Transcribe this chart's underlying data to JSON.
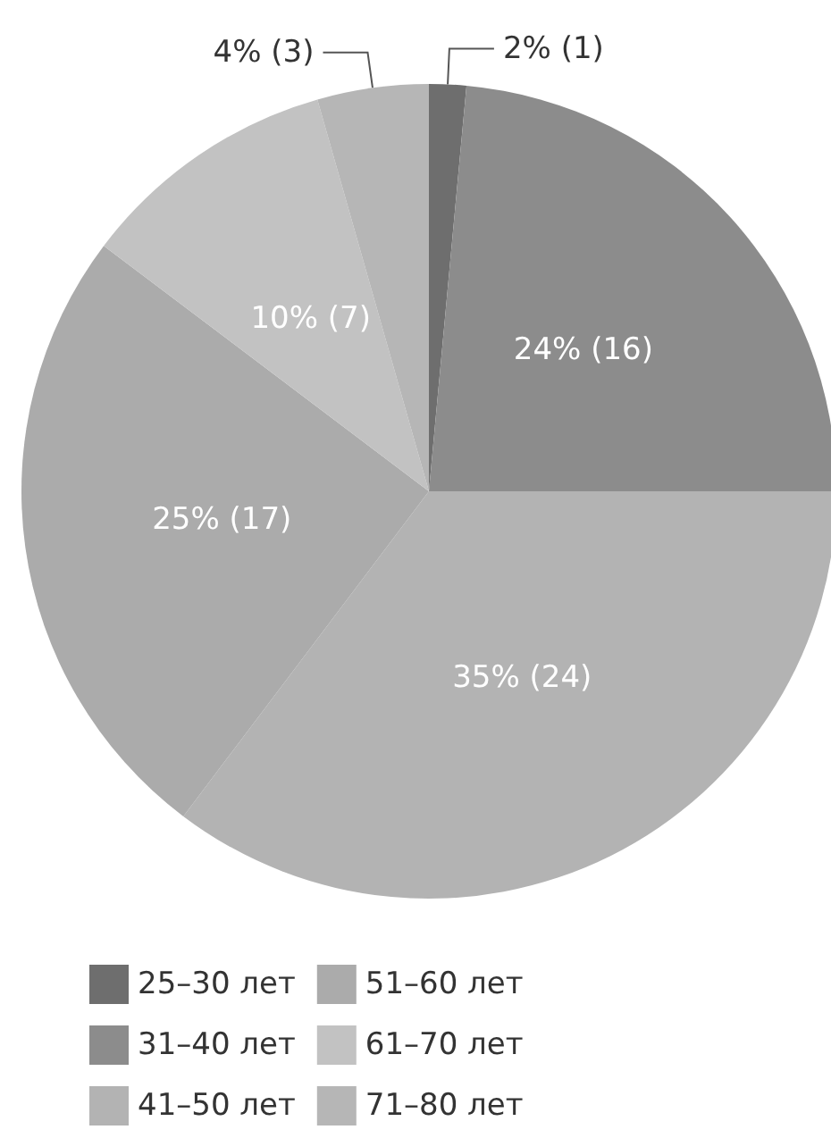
{
  "chart_data": {
    "type": "pie",
    "categories": [
      "25–30 лет",
      "31–40 лет",
      "41–50 лет",
      "51–60 лет",
      "61–70 лет",
      "71–80 лет"
    ],
    "values": [
      1,
      16,
      24,
      17,
      7,
      3
    ],
    "value_labels": [
      "2% (1)",
      "24% (16)",
      "35% (24)",
      "25% (17)",
      "10% (7)",
      "4% (3)"
    ],
    "colors": [
      "#6e6e6e",
      "#8c8c8c",
      "#b3b3b3",
      "#ababab",
      "#c2c2c2",
      "#b6b6b6"
    ],
    "legend": "bottom"
  }
}
